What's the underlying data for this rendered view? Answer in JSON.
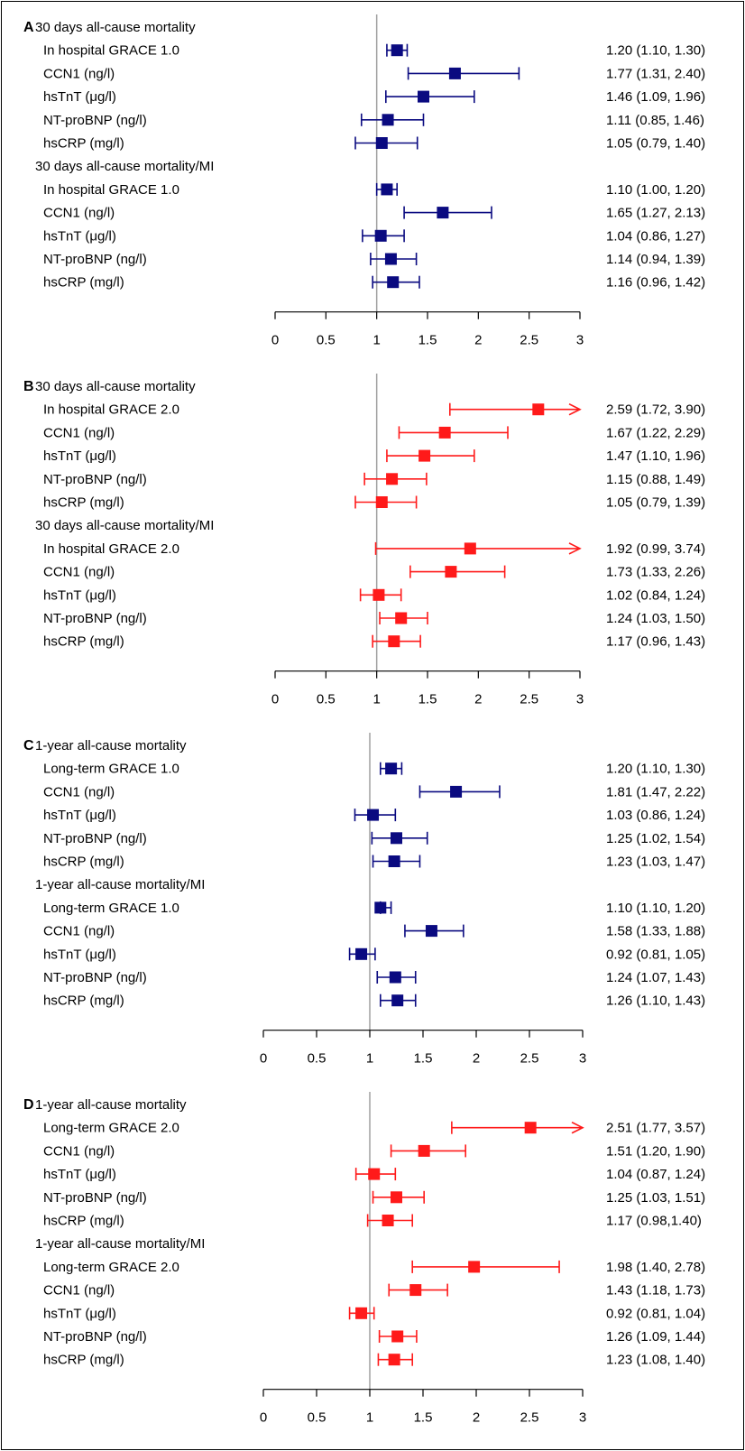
{
  "chart_data": [
    {
      "type": "forest",
      "panel_letter": "A",
      "xlim": [
        0,
        3
      ],
      "ticks": [
        "0",
        "0.5",
        "1",
        "1.5",
        "2",
        "2.5",
        "3"
      ],
      "tick_values": [
        0,
        0.5,
        1,
        1.5,
        2,
        2.5,
        3
      ],
      "reference_line": 1,
      "marker_color": "#0a0a80",
      "groups": [
        {
          "title": "30 days all-cause mortality",
          "rows": [
            {
              "label": "In hospital GRACE 1.0",
              "est": 1.2,
              "lo": 1.1,
              "hi": 1.3,
              "text": "1.20 (1.10, 1.30)"
            },
            {
              "label": "CCN1 (ng/l)",
              "est": 1.77,
              "lo": 1.31,
              "hi": 2.4,
              "text": "1.77 (1.31, 2.40)"
            },
            {
              "label": "hsTnT (μg/l)",
              "est": 1.46,
              "lo": 1.09,
              "hi": 1.96,
              "text": "1.46 (1.09, 1.96)"
            },
            {
              "label": "NT-proBNP (ng/l)",
              "est": 1.11,
              "lo": 0.85,
              "hi": 1.46,
              "text": "1.11 (0.85, 1.46)"
            },
            {
              "label": "hsCRP (mg/l)",
              "est": 1.05,
              "lo": 0.79,
              "hi": 1.4,
              "text": "1.05 (0.79, 1.40)"
            }
          ]
        },
        {
          "title": "30 days all-cause mortality/MI",
          "rows": [
            {
              "label": "In hospital GRACE 1.0",
              "est": 1.1,
              "lo": 1.0,
              "hi": 1.2,
              "text": "1.10 (1.00, 1.20)"
            },
            {
              "label": "CCN1 (ng/l)",
              "est": 1.65,
              "lo": 1.27,
              "hi": 2.13,
              "text": "1.65 (1.27, 2.13)"
            },
            {
              "label": "hsTnT (μg/l)",
              "est": 1.04,
              "lo": 0.86,
              "hi": 1.27,
              "text": "1.04 (0.86, 1.27)"
            },
            {
              "label": "NT-proBNP (ng/l)",
              "est": 1.14,
              "lo": 0.94,
              "hi": 1.39,
              "text": "1.14 (0.94, 1.39)"
            },
            {
              "label": "hsCRP (mg/l)",
              "est": 1.16,
              "lo": 0.96,
              "hi": 1.42,
              "text": "1.16 (0.96, 1.42)"
            }
          ]
        }
      ]
    },
    {
      "type": "forest",
      "panel_letter": "B",
      "xlim": [
        0,
        3
      ],
      "ticks": [
        "0",
        "0.5",
        "1",
        "1.5",
        "2",
        "2.5",
        "3"
      ],
      "tick_values": [
        0,
        0.5,
        1,
        1.5,
        2,
        2.5,
        3
      ],
      "reference_line": 1,
      "marker_color": "#ff1a1a",
      "groups": [
        {
          "title": "30 days all-cause mortality",
          "rows": [
            {
              "label": "In hospital GRACE 2.0",
              "est": 2.59,
              "lo": 1.72,
              "hi": 3.9,
              "text": "2.59 (1.72, 3.90)"
            },
            {
              "label": "CCN1 (ng/l)",
              "est": 1.67,
              "lo": 1.22,
              "hi": 2.29,
              "text": "1.67 (1.22, 2.29)"
            },
            {
              "label": "hsTnT (μg/l)",
              "est": 1.47,
              "lo": 1.1,
              "hi": 1.96,
              "text": "1.47 (1.10, 1.96)"
            },
            {
              "label": "NT-proBNP (ng/l)",
              "est": 1.15,
              "lo": 0.88,
              "hi": 1.49,
              "text": "1.15 (0.88, 1.49)"
            },
            {
              "label": "hsCRP (mg/l)",
              "est": 1.05,
              "lo": 0.79,
              "hi": 1.39,
              "text": "1.05 (0.79, 1.39)"
            }
          ]
        },
        {
          "title": "30 days all-cause mortality/MI",
          "rows": [
            {
              "label": "In hospital GRACE 2.0",
              "est": 1.92,
              "lo": 0.99,
              "hi": 3.74,
              "text": "1.92 (0.99, 3.74)"
            },
            {
              "label": "CCN1 (ng/l)",
              "est": 1.73,
              "lo": 1.33,
              "hi": 2.26,
              "text": "1.73 (1.33, 2.26)"
            },
            {
              "label": "hsTnT (μg/l)",
              "est": 1.02,
              "lo": 0.84,
              "hi": 1.24,
              "text": "1.02 (0.84, 1.24)"
            },
            {
              "label": "NT-proBNP (ng/l)",
              "est": 1.24,
              "lo": 1.03,
              "hi": 1.5,
              "text": "1.24 (1.03, 1.50)"
            },
            {
              "label": "hsCRP (mg/l)",
              "est": 1.17,
              "lo": 0.96,
              "hi": 1.43,
              "text": "1.17 (0.96, 1.43)"
            }
          ]
        }
      ]
    },
    {
      "type": "forest",
      "panel_letter": "C",
      "xlim": [
        0,
        3
      ],
      "ticks": [
        "0",
        "0.5",
        "1",
        "1.5",
        "2",
        "2.5",
        "3"
      ],
      "tick_values": [
        0,
        0.5,
        1,
        1.5,
        2,
        2.5,
        3
      ],
      "reference_line": 1,
      "marker_color": "#0a0a80",
      "groups": [
        {
          "title": "1-year all-cause mortality",
          "rows": [
            {
              "label": "Long-term GRACE 1.0",
              "est": 1.2,
              "lo": 1.1,
              "hi": 1.3,
              "text": "1.20 (1.10, 1.30)"
            },
            {
              "label": "CCN1 (ng/l)",
              "est": 1.81,
              "lo": 1.47,
              "hi": 2.22,
              "text": "1.81 (1.47, 2.22)"
            },
            {
              "label": "hsTnT (μg/l)",
              "est": 1.03,
              "lo": 0.86,
              "hi": 1.24,
              "text": "1.03 (0.86, 1.24)"
            },
            {
              "label": "NT-proBNP (ng/l)",
              "est": 1.25,
              "lo": 1.02,
              "hi": 1.54,
              "text": "1.25 (1.02, 1.54)"
            },
            {
              "label": "hsCRP (mg/l)",
              "est": 1.23,
              "lo": 1.03,
              "hi": 1.47,
              "text": "1.23 (1.03, 1.47)"
            }
          ]
        },
        {
          "title": "1-year all-cause mortality/MI",
          "rows": [
            {
              "label": "Long-term GRACE 1.0",
              "est": 1.1,
              "lo": 1.1,
              "hi": 1.2,
              "text": "1.10 (1.10, 1.20)"
            },
            {
              "label": "CCN1 (ng/l)",
              "est": 1.58,
              "lo": 1.33,
              "hi": 1.88,
              "text": "1.58 (1.33, 1.88)"
            },
            {
              "label": "hsTnT (μg/l)",
              "est": 0.92,
              "lo": 0.81,
              "hi": 1.05,
              "text": "0.92 (0.81, 1.05)"
            },
            {
              "label": "NT-proBNP (ng/l)",
              "est": 1.24,
              "lo": 1.07,
              "hi": 1.43,
              "text": "1.24 (1.07, 1.43)"
            },
            {
              "label": "hsCRP (mg/l)",
              "est": 1.26,
              "lo": 1.1,
              "hi": 1.43,
              "text": "1.26 (1.10, 1.43)"
            }
          ]
        }
      ]
    },
    {
      "type": "forest",
      "panel_letter": "D",
      "xlim": [
        0,
        3
      ],
      "ticks": [
        "0",
        "0.5",
        "1",
        "1.5",
        "2",
        "2.5",
        "3"
      ],
      "tick_values": [
        0,
        0.5,
        1,
        1.5,
        2,
        2.5,
        3
      ],
      "reference_line": 1,
      "marker_color": "#ff1a1a",
      "groups": [
        {
          "title": "1-year all-cause mortality",
          "rows": [
            {
              "label": "Long-term GRACE 2.0",
              "est": 2.51,
              "lo": 1.77,
              "hi": 3.57,
              "text": "2.51 (1.77, 3.57)"
            },
            {
              "label": "CCN1 (ng/l)",
              "est": 1.51,
              "lo": 1.2,
              "hi": 1.9,
              "text": "1.51 (1.20, 1.90)"
            },
            {
              "label": "hsTnT (μg/l)",
              "est": 1.04,
              "lo": 0.87,
              "hi": 1.24,
              "text": "1.04 (0.87, 1.24)"
            },
            {
              "label": "NT-proBNP (ng/l)",
              "est": 1.25,
              "lo": 1.03,
              "hi": 1.51,
              "text": "1.25 (1.03, 1.51)"
            },
            {
              "label": "hsCRP (mg/l)",
              "est": 1.17,
              "lo": 0.98,
              "hi": 1.4,
              "text": "1.17 (0.98,1.40)"
            }
          ]
        },
        {
          "title": "1-year all-cause mortality/MI",
          "rows": [
            {
              "label": "Long-term GRACE 2.0",
              "est": 1.98,
              "lo": 1.4,
              "hi": 2.78,
              "text": "1.98 (1.40, 2.78)"
            },
            {
              "label": "CCN1 (ng/l)",
              "est": 1.43,
              "lo": 1.18,
              "hi": 1.73,
              "text": "1.43 (1.18, 1.73)"
            },
            {
              "label": "hsTnT (μg/l)",
              "est": 0.92,
              "lo": 0.81,
              "hi": 1.04,
              "text": "0.92 (0.81, 1.04)"
            },
            {
              "label": "NT-proBNP (ng/l)",
              "est": 1.26,
              "lo": 1.09,
              "hi": 1.44,
              "text": "1.26 (1.09, 1.44)"
            },
            {
              "label": "hsCRP (mg/l)",
              "est": 1.23,
              "lo": 1.08,
              "hi": 1.4,
              "text": "1.23 (1.08, 1.40)"
            }
          ]
        }
      ]
    }
  ]
}
